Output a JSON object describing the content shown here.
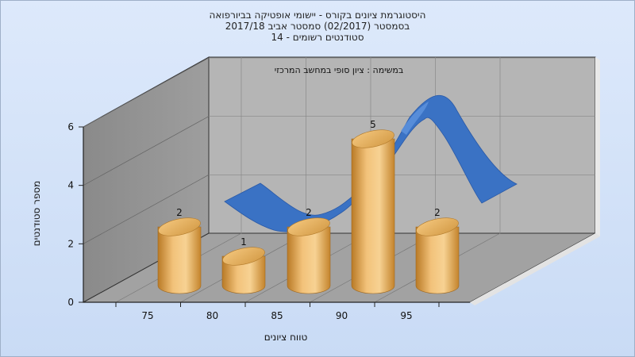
{
  "titles": {
    "line1": "היסטוגרמת ציונים בקורס - יישומי אופטיקה בביורפואה",
    "line2": "בסמסטר  (02/2017)  סמסטר אביב 2017/18",
    "line3": "סטודנטים רשומים - 14"
  },
  "chart_data": {
    "type": "bar",
    "title": "היסטוגרמת ציונים בקורס - יישומי אופטיקה בביורפואה",
    "subtitle": "בסמסטר  (02/2017)  סמסטר אביב 2017/18",
    "note": "סטודנטים רשומים - 14",
    "wall_label": "במשימה : ציון סופי במחשב המרכזי",
    "xlabel": "טווח ציונים",
    "ylabel": "מספר סטודנטים",
    "x_ticks": [
      "75",
      "80",
      "85",
      "90",
      "95"
    ],
    "y_ticks": [
      "0",
      "2",
      "4",
      "6"
    ],
    "ylim": [
      0,
      6
    ],
    "bars": [
      {
        "x": 75,
        "value": 2,
        "label": "2"
      },
      {
        "x": 80,
        "value": 1,
        "label": "1"
      },
      {
        "x": 85,
        "value": 2,
        "label": "2"
      },
      {
        "x": 90,
        "value": 5,
        "label": "5"
      },
      {
        "x": 95,
        "value": 2,
        "label": "2"
      }
    ],
    "curve": {
      "type": "normal-ribbon",
      "color": "#3a72c4"
    },
    "bar_color": "#e6a84a",
    "grid": true
  }
}
